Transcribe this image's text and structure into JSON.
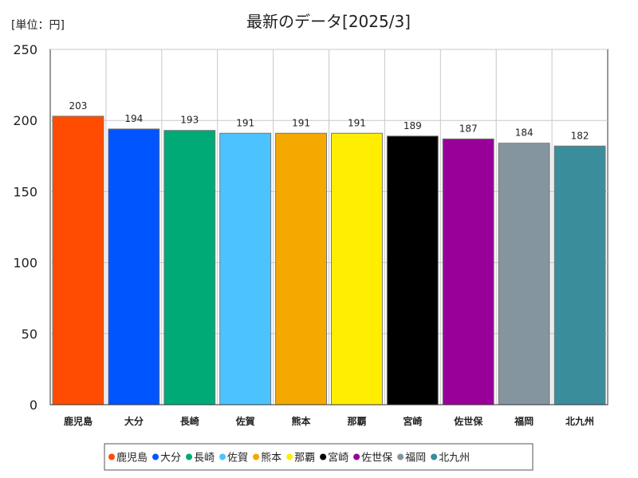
{
  "chart_data": {
    "type": "bar",
    "title": "最新のデータ[2025/3]",
    "unit_label": "[単位：円]",
    "xlabel": "",
    "ylabel": "",
    "ylim": [
      0,
      250
    ],
    "yticks": [
      0,
      50,
      100,
      150,
      200,
      250
    ],
    "grid": true,
    "legend_position": "bottom",
    "categories": [
      "鹿児島",
      "大分",
      "長崎",
      "佐賀",
      "熊本",
      "那覇",
      "宮崎",
      "佐世保",
      "福岡",
      "北九州"
    ],
    "values": [
      203,
      194,
      193,
      191,
      191,
      191,
      189,
      187,
      184,
      182
    ],
    "colors": [
      "#ff4c00",
      "#0055ff",
      "#00aa77",
      "#4cc3ff",
      "#f5a800",
      "#ffee00",
      "#000000",
      "#990099",
      "#8595a0",
      "#3a8d9a"
    ]
  }
}
